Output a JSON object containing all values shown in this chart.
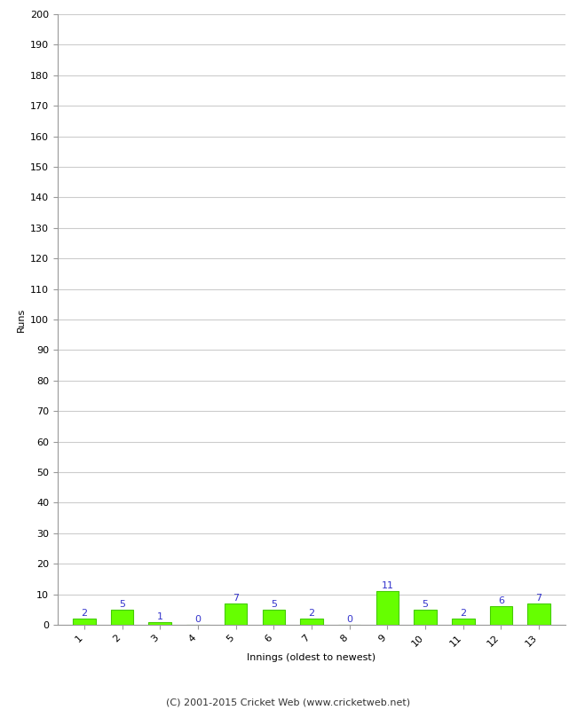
{
  "innings": [
    1,
    2,
    3,
    4,
    5,
    6,
    7,
    8,
    9,
    10,
    11,
    12,
    13
  ],
  "runs": [
    2,
    5,
    1,
    0,
    7,
    5,
    2,
    0,
    11,
    5,
    2,
    6,
    7
  ],
  "bar_color": "#66ff00",
  "bar_edge_color": "#44cc00",
  "label_color": "#3333cc",
  "ylabel": "Runs",
  "xlabel": "Innings (oldest to newest)",
  "ylim": [
    0,
    200
  ],
  "yticks": [
    0,
    10,
    20,
    30,
    40,
    50,
    60,
    70,
    80,
    90,
    100,
    110,
    120,
    130,
    140,
    150,
    160,
    170,
    180,
    190,
    200
  ],
  "footer": "(C) 2001-2015 Cricket Web (www.cricketweb.net)",
  "bg_color": "#ffffff",
  "grid_color": "#cccccc",
  "label_fontsize": 8,
  "axis_fontsize": 8,
  "footer_fontsize": 8,
  "xtick_rotation": 45
}
